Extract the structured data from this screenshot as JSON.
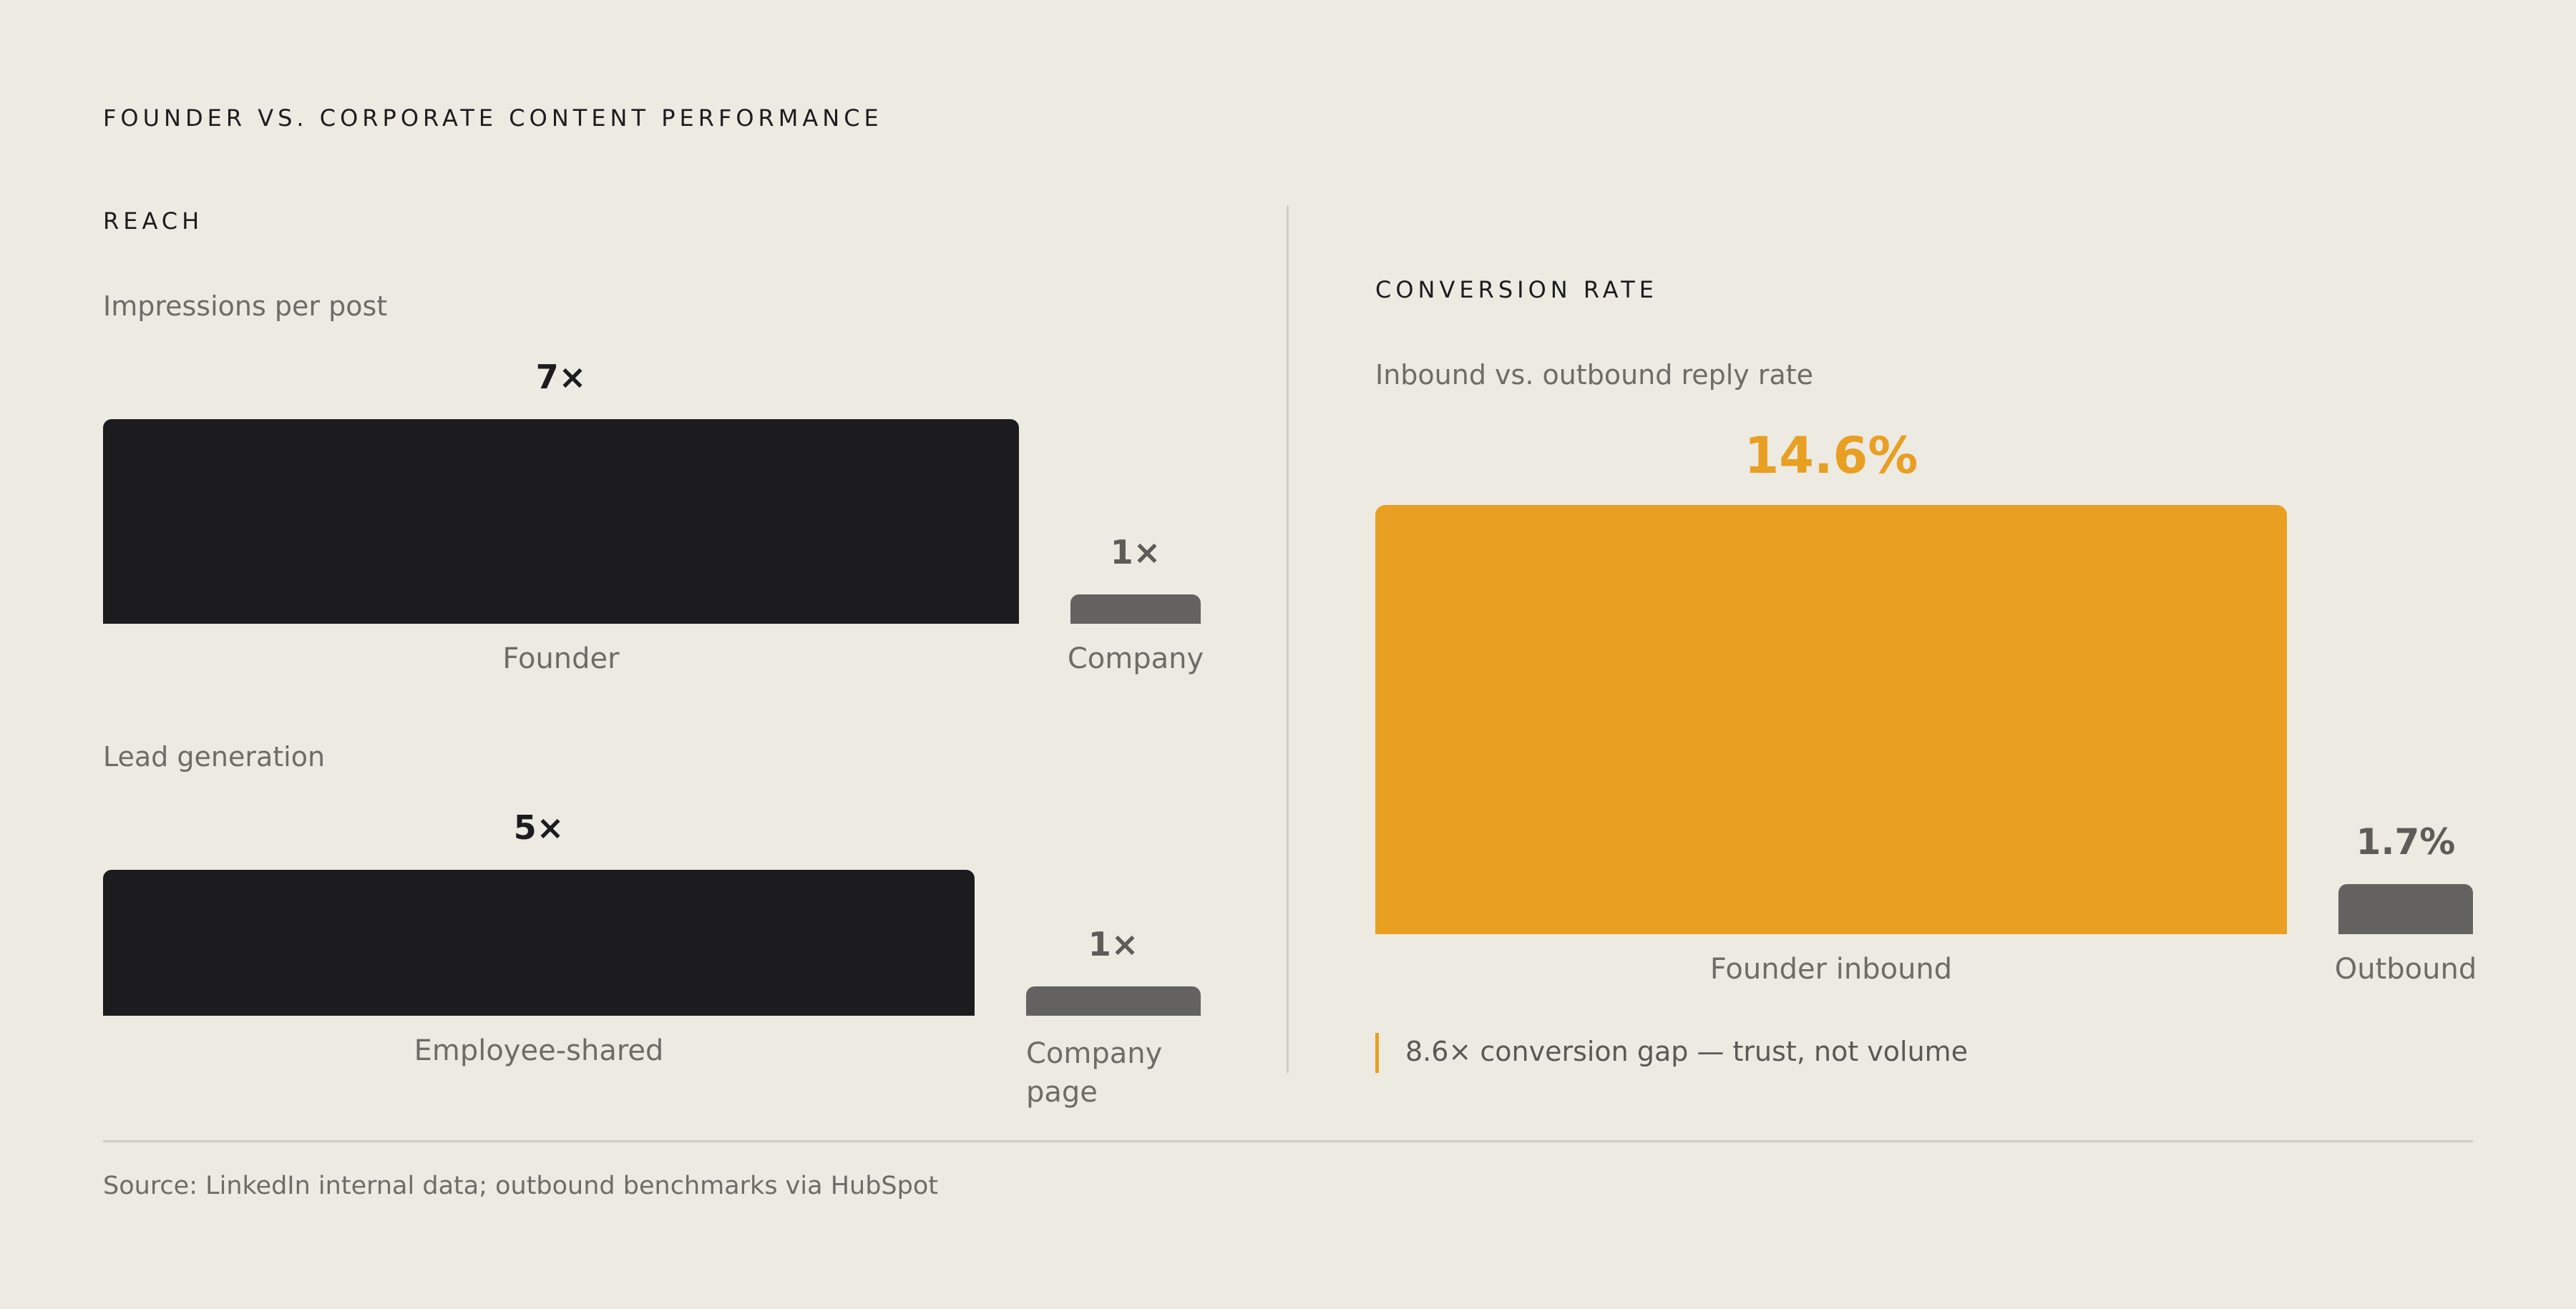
{
  "title": "FOUNDER VS. CORPORATE CONTENT PERFORMANCE",
  "colors": {
    "background": "#edeae2",
    "founder": "#1c1c1f",
    "corporate": "#636260",
    "accent": "#e89f22"
  },
  "chart_data": [
    {
      "type": "bar",
      "section": "REACH",
      "title": "Impressions per post",
      "categories": [
        "Founder",
        "Company"
      ],
      "values": [
        7,
        1
      ],
      "value_labels": [
        "7×",
        "1×"
      ]
    },
    {
      "type": "bar",
      "title": "Lead generation",
      "categories": [
        "Employee-shared",
        "Company page"
      ],
      "values": [
        5,
        1
      ],
      "value_labels": [
        "5×",
        "1×"
      ]
    },
    {
      "type": "bar",
      "section": "CONVERSION RATE",
      "title": "Inbound vs. outbound reply rate",
      "categories": [
        "Founder inbound",
        "Outbound"
      ],
      "values": [
        14.6,
        1.7
      ],
      "value_labels": [
        "14.6%",
        "1.7%"
      ]
    }
  ],
  "callout": "8.6× conversion gap — trust, not volume",
  "source": "Source: LinkedIn internal data; outbound benchmarks via HubSpot"
}
